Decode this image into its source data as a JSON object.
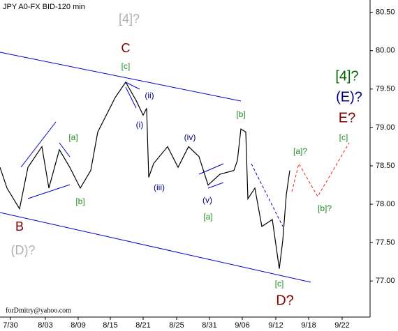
{
  "chart_data": {
    "type": "line",
    "title": "JPY A0-FX BID-120 min",
    "footer": "forDmitry@yahoo.com",
    "x": [
      0,
      10,
      28,
      40,
      60,
      70,
      85,
      100,
      115,
      130,
      140,
      155,
      165,
      180,
      195,
      205,
      210,
      213,
      220,
      240,
      255,
      270,
      285,
      298,
      315,
      335,
      340,
      345,
      352,
      355,
      365,
      375,
      390,
      400,
      405,
      410,
      415
    ],
    "series": [
      {
        "name": "JPY A0-FX",
        "color": "#000000",
        "values": [
          78.48,
          78.21,
          77.94,
          78.48,
          78.75,
          78.21,
          78.71,
          78.48,
          78.21,
          78.44,
          78.94,
          79.21,
          79.39,
          79.59,
          79.35,
          79.16,
          79.25,
          78.35,
          78.53,
          78.75,
          78.48,
          78.75,
          78.62,
          78.25,
          78.39,
          78.44,
          78.57,
          78.98,
          78.94,
          78.07,
          78.21,
          77.71,
          77.8,
          77.16,
          77.53,
          78.12,
          78.44
        ]
      }
    ],
    "xlim": [
      0,
      530
    ],
    "xticks": [
      {
        "value": 15,
        "label": "7/30"
      },
      {
        "value": 65,
        "label": "8/03"
      },
      {
        "value": 112,
        "label": "8/09"
      },
      {
        "value": 158,
        "label": "8/15"
      },
      {
        "value": 205,
        "label": "8/21"
      },
      {
        "value": 253,
        "label": "8/25"
      },
      {
        "value": 300,
        "label": "8/31"
      },
      {
        "value": 347,
        "label": "9/06"
      },
      {
        "value": 395,
        "label": "9/12"
      },
      {
        "value": 442,
        "label": "9/18"
      },
      {
        "value": 490,
        "label": "9/22"
      }
    ],
    "ylim": [
      76.53,
      80.66
    ],
    "yticks": [
      {
        "value": 80.5,
        "label": "80.50"
      },
      {
        "value": 80,
        "label": "80.00"
      },
      {
        "value": 79.5,
        "label": "79.50"
      },
      {
        "value": 79,
        "label": "79.00"
      },
      {
        "value": 78.5,
        "label": "78.50"
      },
      {
        "value": 78,
        "label": "78.00"
      },
      {
        "value": 77.5,
        "label": "77.50"
      },
      {
        "value": 77,
        "label": "77.00"
      }
    ],
    "annotations": [
      {
        "text": "[4]?",
        "color": "#b0b0b0"
      },
      {
        "text": "C",
        "color": "#800000"
      },
      {
        "text": "[c]",
        "color": "#228b22"
      },
      {
        "text": "(ii)",
        "color": "#000080"
      },
      {
        "text": "(i)",
        "color": "#000080"
      },
      {
        "text": "(iii)",
        "color": "#000080"
      },
      {
        "text": "[b]",
        "color": "#228b22"
      },
      {
        "text": "(iv)",
        "color": "#000080"
      },
      {
        "text": "(v)",
        "color": "#000080"
      },
      {
        "text": "[a]",
        "color": "#228b22"
      },
      {
        "text": "[a]",
        "color": "#228b22"
      },
      {
        "text": "[b]",
        "color": "#228b22"
      },
      {
        "text": "B",
        "color": "#800000"
      },
      {
        "text": "(D)?",
        "color": "#b0b0b0"
      },
      {
        "text": "[a]?",
        "color": "#228b22"
      },
      {
        "text": "[b]?",
        "color": "#228b22"
      },
      {
        "text": "[c]",
        "color": "#228b22"
      },
      {
        "text": "[4]?",
        "color": "#006400"
      },
      {
        "text": "(E)?",
        "color": "#000080"
      },
      {
        "text": "E?",
        "color": "#800000"
      },
      {
        "text": "[c]",
        "color": "#228b22"
      },
      {
        "text": "D?",
        "color": "#800000"
      }
    ]
  }
}
